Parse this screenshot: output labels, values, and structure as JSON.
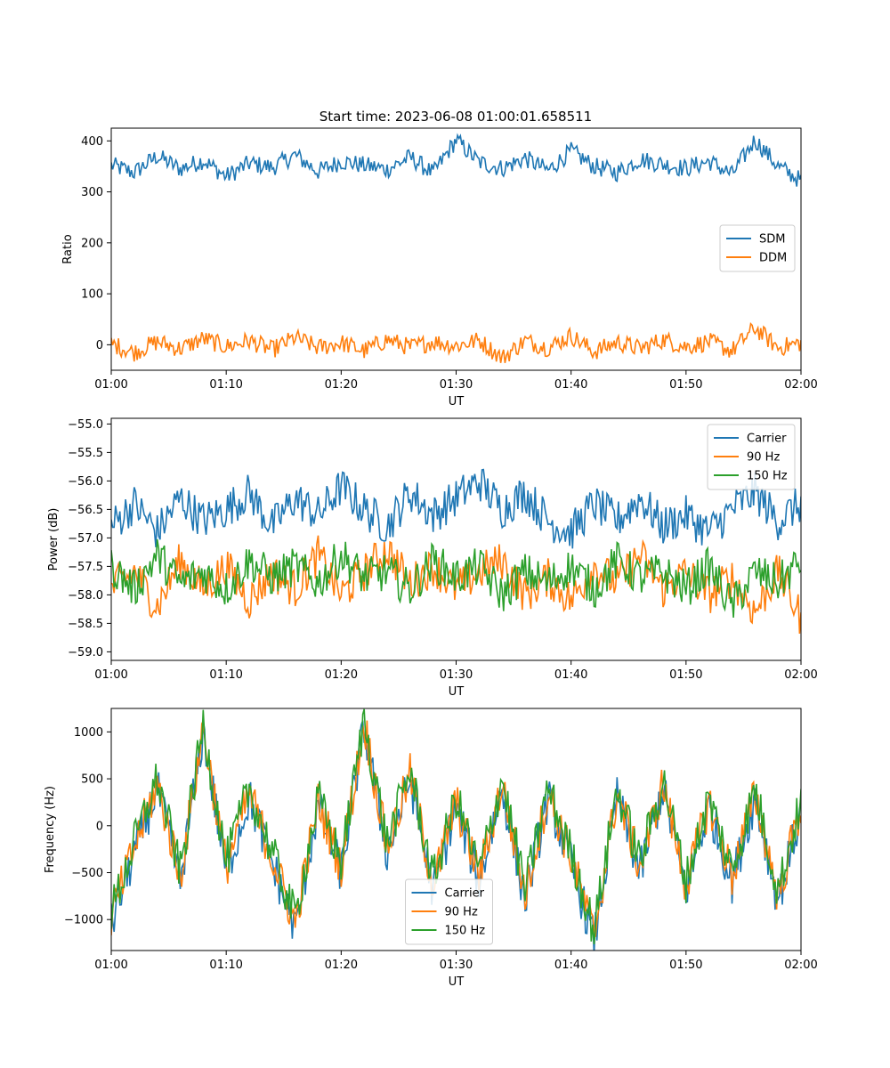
{
  "figure": {
    "title": "Start time: 2023-06-08 01:00:01.658511"
  },
  "chart_data": [
    {
      "type": "line",
      "title": "Start time: 2023-06-08 01:00:01.658511",
      "xlabel": "UT",
      "ylabel": "Ratio",
      "xlim": [
        "01:00",
        "02:00"
      ],
      "xticks": [
        "01:00",
        "01:10",
        "01:20",
        "01:30",
        "01:40",
        "01:50",
        "02:00"
      ],
      "ylim": [
        -50,
        425
      ],
      "yticks": [
        "0",
        "100",
        "200",
        "300",
        "400"
      ],
      "grid": false,
      "legend_position": "center-right",
      "series": [
        {
          "name": "SDM",
          "color": "#1f77b4",
          "x": [
            "01:00",
            "01:02",
            "01:04",
            "01:06",
            "01:08",
            "01:10",
            "01:12",
            "01:14",
            "01:16",
            "01:18",
            "01:20",
            "01:22",
            "01:24",
            "01:26",
            "01:28",
            "01:30",
            "01:32",
            "01:34",
            "01:36",
            "01:38",
            "01:40",
            "01:42",
            "01:44",
            "01:46",
            "01:48",
            "01:50",
            "01:52",
            "01:54",
            "01:56",
            "01:58",
            "02:00"
          ],
          "values": [
            352,
            338,
            370,
            345,
            362,
            330,
            356,
            348,
            372,
            340,
            360,
            352,
            344,
            368,
            336,
            402,
            358,
            346,
            366,
            342,
            380,
            350,
            338,
            364,
            354,
            346,
            360,
            334,
            402,
            350,
            322
          ]
        },
        {
          "name": "DDM",
          "color": "#ff7f0e",
          "x": [
            "01:00",
            "01:02",
            "01:04",
            "01:06",
            "01:08",
            "01:10",
            "01:12",
            "01:14",
            "01:16",
            "01:18",
            "01:20",
            "01:22",
            "01:24",
            "01:26",
            "01:28",
            "01:30",
            "01:32",
            "01:34",
            "01:36",
            "01:38",
            "01:40",
            "01:42",
            "01:44",
            "01:46",
            "01:48",
            "01:50",
            "01:52",
            "01:54",
            "01:56",
            "01:58",
            "02:00"
          ],
          "values": [
            2,
            -15,
            6,
            -8,
            12,
            -4,
            8,
            -10,
            14,
            -6,
            4,
            -12,
            10,
            -5,
            6,
            -2,
            9,
            -26,
            8,
            -6,
            18,
            -14,
            5,
            -8,
            10,
            -4,
            6,
            -12,
            33,
            -6,
            4
          ]
        }
      ]
    },
    {
      "type": "line",
      "title": "",
      "xlabel": "UT",
      "ylabel": "Power (dB)",
      "xlim": [
        "01:00",
        "02:00"
      ],
      "xticks": [
        "01:00",
        "01:10",
        "01:20",
        "01:30",
        "01:40",
        "01:50",
        "02:00"
      ],
      "ylim": [
        -59.15,
        -54.9
      ],
      "yticks": [
        "−55.0",
        "−55.5",
        "−56.0",
        "−56.5",
        "−57.0",
        "−57.5",
        "−58.0",
        "−58.5",
        "−59.0"
      ],
      "grid": false,
      "legend_position": "top-right",
      "series": [
        {
          "name": "Carrier",
          "color": "#1f77b4",
          "x": [
            "01:00",
            "01:02",
            "01:04",
            "01:06",
            "01:08",
            "01:10",
            "01:12",
            "01:14",
            "01:16",
            "01:18",
            "01:20",
            "01:22",
            "01:24",
            "01:26",
            "01:28",
            "01:30",
            "01:32",
            "01:34",
            "01:36",
            "01:38",
            "01:40",
            "01:42",
            "01:44",
            "01:46",
            "01:48",
            "01:50",
            "01:52",
            "01:54",
            "01:56",
            "01:58",
            "02:00"
          ],
          "values": [
            -56.8,
            -56.4,
            -56.9,
            -56.3,
            -56.7,
            -56.5,
            -56.2,
            -56.8,
            -56.3,
            -56.6,
            -56.1,
            -56.5,
            -56.8,
            -56.2,
            -56.6,
            -56.3,
            -56.0,
            -56.5,
            -56.2,
            -56.7,
            -56.9,
            -56.4,
            -56.7,
            -56.3,
            -56.8,
            -56.6,
            -56.9,
            -56.5,
            -56.2,
            -56.7,
            -56.4
          ]
        },
        {
          "name": "90 Hz",
          "color": "#ff7f0e",
          "x": [
            "01:00",
            "01:02",
            "01:04",
            "01:06",
            "01:08",
            "01:10",
            "01:12",
            "01:14",
            "01:16",
            "01:18",
            "01:20",
            "01:22",
            "01:24",
            "01:26",
            "01:28",
            "01:30",
            "01:32",
            "01:34",
            "01:36",
            "01:38",
            "01:40",
            "01:42",
            "01:44",
            "01:46",
            "01:48",
            "01:50",
            "01:52",
            "01:54",
            "01:56",
            "01:58",
            "02:00"
          ],
          "values": [
            -57.9,
            -57.6,
            -58.2,
            -57.4,
            -57.9,
            -57.5,
            -58.1,
            -57.6,
            -57.9,
            -57.3,
            -58.0,
            -57.6,
            -57.2,
            -57.8,
            -57.5,
            -57.9,
            -57.6,
            -57.4,
            -58.0,
            -57.7,
            -58.1,
            -57.5,
            -57.8,
            -57.3,
            -57.9,
            -57.6,
            -58.0,
            -57.7,
            -58.3,
            -57.6,
            -58.4
          ]
        },
        {
          "name": "150 Hz",
          "color": "#2ca02c",
          "x": [
            "01:00",
            "01:02",
            "01:04",
            "01:06",
            "01:08",
            "01:10",
            "01:12",
            "01:14",
            "01:16",
            "01:18",
            "01:20",
            "01:22",
            "01:24",
            "01:26",
            "01:28",
            "01:30",
            "01:32",
            "01:34",
            "01:36",
            "01:38",
            "01:40",
            "01:42",
            "01:44",
            "01:46",
            "01:48",
            "01:50",
            "01:52",
            "01:54",
            "01:56",
            "01:58",
            "02:00"
          ],
          "values": [
            -57.5,
            -57.9,
            -57.3,
            -57.8,
            -57.6,
            -57.9,
            -57.4,
            -57.7,
            -57.5,
            -57.8,
            -57.3,
            -57.7,
            -57.6,
            -57.9,
            -57.4,
            -57.7,
            -57.5,
            -58.0,
            -57.6,
            -57.8,
            -57.5,
            -57.9,
            -57.4,
            -57.7,
            -57.6,
            -57.9,
            -57.5,
            -58.2,
            -57.6,
            -57.8,
            -57.4
          ]
        }
      ]
    },
    {
      "type": "line",
      "title": "",
      "xlabel": "UT",
      "ylabel": "Frequency (Hz)",
      "xlim": [
        "01:00",
        "02:00"
      ],
      "xticks": [
        "01:00",
        "01:10",
        "01:20",
        "01:30",
        "01:40",
        "01:50",
        "02:00"
      ],
      "ylim": [
        -1330,
        1250
      ],
      "yticks": [
        "1000",
        "500",
        "0",
        "−500",
        "−1000"
      ],
      "grid": false,
      "legend_position": "bottom-center",
      "series": [
        {
          "name": "Carrier",
          "color": "#1f77b4",
          "x": [
            "01:00",
            "01:02",
            "01:04",
            "01:06",
            "01:08",
            "01:10",
            "01:12",
            "01:14",
            "01:16",
            "01:18",
            "01:20",
            "01:22",
            "01:24",
            "01:26",
            "01:28",
            "01:30",
            "01:32",
            "01:34",
            "01:36",
            "01:38",
            "01:40",
            "01:42",
            "01:44",
            "01:46",
            "01:48",
            "01:50",
            "01:52",
            "01:54",
            "01:56",
            "01:58",
            "02:00"
          ],
          "values": [
            -1050,
            -300,
            400,
            -600,
            1000,
            -500,
            300,
            -400,
            -1100,
            200,
            -500,
            1050,
            -300,
            500,
            -700,
            200,
            -600,
            400,
            -800,
            300,
            -400,
            -1230,
            300,
            -500,
            400,
            -700,
            200,
            -600,
            300,
            -800,
            150
          ]
        },
        {
          "name": "90 Hz",
          "color": "#ff7f0e",
          "x": [
            "01:00",
            "01:02",
            "01:04",
            "01:06",
            "01:08",
            "01:10",
            "01:12",
            "01:14",
            "01:16",
            "01:18",
            "01:20",
            "01:22",
            "01:24",
            "01:26",
            "01:28",
            "01:30",
            "01:32",
            "01:34",
            "01:36",
            "01:38",
            "01:40",
            "01:42",
            "01:44",
            "01:46",
            "01:48",
            "01:50",
            "01:52",
            "01:54",
            "01:56",
            "01:58",
            "02:00"
          ],
          "values": [
            -980,
            -240,
            450,
            -540,
            1040,
            -440,
            350,
            -340,
            -1040,
            250,
            -440,
            1100,
            -240,
            550,
            -640,
            250,
            -540,
            450,
            -740,
            350,
            -340,
            -1170,
            350,
            -440,
            450,
            -640,
            250,
            -540,
            350,
            -740,
            200
          ]
        },
        {
          "name": "150 Hz",
          "color": "#2ca02c",
          "x": [
            "01:00",
            "01:02",
            "01:04",
            "01:06",
            "01:08",
            "01:10",
            "01:12",
            "01:14",
            "01:16",
            "01:18",
            "01:20",
            "01:22",
            "01:24",
            "01:26",
            "01:28",
            "01:30",
            "01:32",
            "01:34",
            "01:36",
            "01:38",
            "01:40",
            "01:42",
            "01:44",
            "01:46",
            "01:48",
            "01:50",
            "01:52",
            "01:54",
            "01:56",
            "01:58",
            "02:00"
          ],
          "values": [
            -930,
            -190,
            500,
            -490,
            1070,
            -390,
            400,
            -290,
            -990,
            300,
            -390,
            1130,
            -190,
            600,
            -590,
            300,
            -490,
            500,
            -690,
            400,
            -290,
            -1120,
            400,
            -390,
            500,
            -590,
            300,
            -490,
            400,
            -690,
            250
          ]
        }
      ]
    }
  ]
}
